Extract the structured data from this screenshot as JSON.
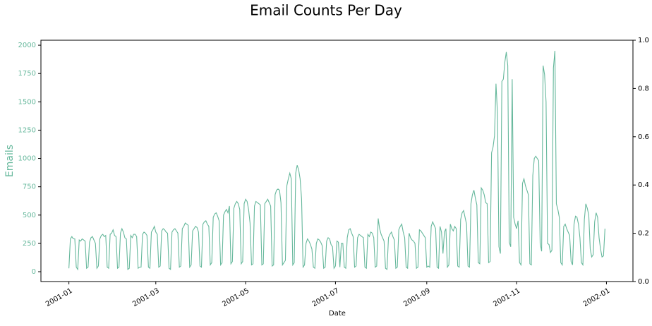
{
  "chart_data": {
    "type": "line",
    "title": "Email Counts Per Day",
    "xlabel": "Date",
    "ylabel": "Emails",
    "color": "#66b89c",
    "x": [
      "2001-01-01",
      "2001-01-02",
      "2001-01-03",
      "2001-01-04",
      "2001-01-05",
      "2001-01-06",
      "2001-01-07",
      "2001-01-08",
      "2001-01-09",
      "2001-01-10",
      "2001-01-11",
      "2001-01-12",
      "2001-01-13",
      "2001-01-14",
      "2001-01-15",
      "2001-01-16",
      "2001-01-17",
      "2001-01-18",
      "2001-01-19",
      "2001-01-20",
      "2001-01-21",
      "2001-01-22",
      "2001-01-23",
      "2001-01-24",
      "2001-01-25",
      "2001-01-26",
      "2001-01-27",
      "2001-01-28",
      "2001-01-29",
      "2001-01-30",
      "2001-01-31",
      "2001-02-01",
      "2001-02-02",
      "2001-02-03",
      "2001-02-04",
      "2001-02-05",
      "2001-02-06",
      "2001-02-07",
      "2001-02-08",
      "2001-02-09",
      "2001-02-10",
      "2001-02-11",
      "2001-02-12",
      "2001-02-13",
      "2001-02-14",
      "2001-02-15",
      "2001-02-16",
      "2001-02-17",
      "2001-02-18",
      "2001-02-19",
      "2001-02-20",
      "2001-02-21",
      "2001-02-22",
      "2001-02-23",
      "2001-02-24",
      "2001-02-25",
      "2001-02-26",
      "2001-02-27",
      "2001-02-28",
      "2001-03-01",
      "2001-03-02",
      "2001-03-03",
      "2001-03-04",
      "2001-03-05",
      "2001-03-06",
      "2001-03-07",
      "2001-03-08",
      "2001-03-09",
      "2001-03-10",
      "2001-03-11",
      "2001-03-12",
      "2001-03-13",
      "2001-03-14",
      "2001-03-15",
      "2001-03-16",
      "2001-03-17",
      "2001-03-18",
      "2001-03-19",
      "2001-03-20",
      "2001-03-21",
      "2001-03-22",
      "2001-03-23",
      "2001-03-24",
      "2001-03-25",
      "2001-03-26",
      "2001-03-27",
      "2001-03-28",
      "2001-03-29",
      "2001-03-30",
      "2001-03-31",
      "2001-04-01",
      "2001-04-02",
      "2001-04-03",
      "2001-04-04",
      "2001-04-05",
      "2001-04-06",
      "2001-04-07",
      "2001-04-08",
      "2001-04-09",
      "2001-04-10",
      "2001-04-11",
      "2001-04-12",
      "2001-04-13",
      "2001-04-14",
      "2001-04-15",
      "2001-04-16",
      "2001-04-17",
      "2001-04-18",
      "2001-04-19",
      "2001-04-20",
      "2001-04-21",
      "2001-04-22",
      "2001-04-23",
      "2001-04-24",
      "2001-04-25",
      "2001-04-26",
      "2001-04-27",
      "2001-04-28",
      "2001-04-29",
      "2001-04-30",
      "2001-05-01",
      "2001-05-02",
      "2001-05-03",
      "2001-05-04",
      "2001-05-05",
      "2001-05-06",
      "2001-05-07",
      "2001-05-08",
      "2001-05-09",
      "2001-05-10",
      "2001-05-11",
      "2001-05-12",
      "2001-05-13",
      "2001-05-14",
      "2001-05-15",
      "2001-05-16",
      "2001-05-17",
      "2001-05-18",
      "2001-05-19",
      "2001-05-20",
      "2001-05-21",
      "2001-05-22",
      "2001-05-23",
      "2001-05-24",
      "2001-05-25",
      "2001-05-26",
      "2001-05-27",
      "2001-05-28",
      "2001-05-29",
      "2001-05-30",
      "2001-05-31",
      "2001-06-01",
      "2001-06-02",
      "2001-06-03",
      "2001-06-04",
      "2001-06-05",
      "2001-06-06",
      "2001-06-07",
      "2001-06-08",
      "2001-06-09",
      "2001-06-10",
      "2001-06-11",
      "2001-06-12",
      "2001-06-13",
      "2001-06-14",
      "2001-06-15",
      "2001-06-16",
      "2001-06-17",
      "2001-06-18",
      "2001-06-19",
      "2001-06-20",
      "2001-06-21",
      "2001-06-22",
      "2001-06-23",
      "2001-06-24",
      "2001-06-25",
      "2001-06-26",
      "2001-06-27",
      "2001-06-28",
      "2001-06-29",
      "2001-06-30",
      "2001-07-01",
      "2001-07-02",
      "2001-07-03",
      "2001-07-04",
      "2001-07-05",
      "2001-07-06",
      "2001-07-07",
      "2001-07-08",
      "2001-07-09",
      "2001-07-10",
      "2001-07-11",
      "2001-07-12",
      "2001-07-13",
      "2001-07-14",
      "2001-07-15",
      "2001-07-16",
      "2001-07-17",
      "2001-07-18",
      "2001-07-19",
      "2001-07-20",
      "2001-07-21",
      "2001-07-22",
      "2001-07-23",
      "2001-07-24",
      "2001-07-25",
      "2001-07-26",
      "2001-07-27",
      "2001-07-28",
      "2001-07-29",
      "2001-07-30",
      "2001-07-31",
      "2001-08-01",
      "2001-08-02",
      "2001-08-03",
      "2001-08-04",
      "2001-08-05",
      "2001-08-06",
      "2001-08-07",
      "2001-08-08",
      "2001-08-09",
      "2001-08-10",
      "2001-08-11",
      "2001-08-12",
      "2001-08-13",
      "2001-08-14",
      "2001-08-15",
      "2001-08-16",
      "2001-08-17",
      "2001-08-18",
      "2001-08-19",
      "2001-08-20",
      "2001-08-21",
      "2001-08-22",
      "2001-08-23",
      "2001-08-24",
      "2001-08-25",
      "2001-08-26",
      "2001-08-27",
      "2001-08-28",
      "2001-08-29",
      "2001-08-30",
      "2001-08-31",
      "2001-09-01",
      "2001-09-02",
      "2001-09-03",
      "2001-09-04",
      "2001-09-05",
      "2001-09-06",
      "2001-09-07",
      "2001-09-08",
      "2001-09-09",
      "2001-09-10",
      "2001-09-11",
      "2001-09-12",
      "2001-09-13",
      "2001-09-14",
      "2001-09-15",
      "2001-09-16",
      "2001-09-17",
      "2001-09-18",
      "2001-09-19",
      "2001-09-20",
      "2001-09-21",
      "2001-09-22",
      "2001-09-23",
      "2001-09-24",
      "2001-09-25",
      "2001-09-26",
      "2001-09-27",
      "2001-09-28",
      "2001-09-29",
      "2001-09-30",
      "2001-10-01",
      "2001-10-02",
      "2001-10-03",
      "2001-10-04",
      "2001-10-05",
      "2001-10-06",
      "2001-10-07",
      "2001-10-08",
      "2001-10-09",
      "2001-10-10",
      "2001-10-11",
      "2001-10-12",
      "2001-10-13",
      "2001-10-14",
      "2001-10-15",
      "2001-10-16",
      "2001-10-17",
      "2001-10-18",
      "2001-10-19",
      "2001-10-20",
      "2001-10-21",
      "2001-10-22",
      "2001-10-23",
      "2001-10-24",
      "2001-10-25",
      "2001-10-26",
      "2001-10-27",
      "2001-10-28",
      "2001-10-29",
      "2001-10-30",
      "2001-10-31",
      "2001-11-01",
      "2001-11-02",
      "2001-11-03",
      "2001-11-04",
      "2001-11-05",
      "2001-11-06",
      "2001-11-07",
      "2001-11-08",
      "2001-11-09",
      "2001-11-10",
      "2001-11-11",
      "2001-11-12",
      "2001-11-13",
      "2001-11-14",
      "2001-11-15",
      "2001-11-16",
      "2001-11-17",
      "2001-11-18",
      "2001-11-19",
      "2001-11-20",
      "2001-11-21",
      "2001-11-22",
      "2001-11-23",
      "2001-11-24",
      "2001-11-25",
      "2001-11-26",
      "2001-11-27",
      "2001-11-28",
      "2001-11-29",
      "2001-11-30",
      "2001-12-01",
      "2001-12-02",
      "2001-12-03",
      "2001-12-04",
      "2001-12-05",
      "2001-12-06",
      "2001-12-07",
      "2001-12-08",
      "2001-12-09",
      "2001-12-10",
      "2001-12-11",
      "2001-12-12",
      "2001-12-13",
      "2001-12-14",
      "2001-12-15",
      "2001-12-16",
      "2001-12-17",
      "2001-12-18",
      "2001-12-19",
      "2001-12-20",
      "2001-12-21",
      "2001-12-22",
      "2001-12-23",
      "2001-12-24",
      "2001-12-25",
      "2001-12-26",
      "2001-12-27",
      "2001-12-28",
      "2001-12-29",
      "2001-12-30",
      "2001-12-31"
    ],
    "values": [
      30,
      290,
      310,
      290,
      290,
      40,
      20,
      280,
      270,
      290,
      280,
      270,
      30,
      40,
      260,
      300,
      310,
      280,
      250,
      30,
      50,
      290,
      320,
      330,
      310,
      320,
      40,
      30,
      330,
      340,
      370,
      320,
      310,
      30,
      40,
      340,
      380,
      350,
      300,
      290,
      20,
      30,
      320,
      300,
      330,
      330,
      310,
      30,
      40,
      40,
      330,
      350,
      340,
      320,
      40,
      30,
      350,
      370,
      400,
      350,
      330,
      40,
      50,
      360,
      380,
      370,
      350,
      340,
      30,
      20,
      350,
      370,
      380,
      360,
      340,
      40,
      50,
      380,
      400,
      430,
      420,
      410,
      40,
      60,
      360,
      380,
      400,
      390,
      350,
      50,
      40,
      420,
      440,
      450,
      420,
      400,
      60,
      80,
      480,
      510,
      520,
      490,
      450,
      60,
      80,
      500,
      530,
      550,
      520,
      580,
      70,
      90,
      560,
      600,
      620,
      600,
      550,
      70,
      90,
      600,
      640,
      620,
      550,
      430,
      60,
      70,
      580,
      620,
      610,
      600,
      590,
      60,
      70,
      600,
      620,
      640,
      610,
      580,
      50,
      60,
      680,
      720,
      730,
      720,
      610,
      60,
      80,
      100,
      760,
      820,
      870,
      820,
      60,
      80,
      870,
      940,
      900,
      820,
      640,
      40,
      60,
      250,
      290,
      270,
      240,
      200,
      40,
      30,
      250,
      290,
      280,
      260,
      230,
      30,
      40,
      270,
      300,
      290,
      240,
      220,
      30,
      50,
      270,
      260,
      40,
      250,
      250,
      40,
      30,
      300,
      370,
      380,
      340,
      310,
      40,
      50,
      300,
      330,
      320,
      310,
      300,
      40,
      30,
      330,
      310,
      350,
      340,
      300,
      40,
      50,
      470,
      380,
      330,
      300,
      270,
      30,
      20,
      300,
      330,
      350,
      310,
      280,
      30,
      40,
      370,
      400,
      420,
      350,
      300,
      40,
      30,
      340,
      300,
      280,
      270,
      250,
      30,
      40,
      370,
      360,
      340,
      320,
      300,
      40,
      50,
      40,
      400,
      440,
      410,
      380,
      40,
      30,
      400,
      350,
      160,
      350,
      380,
      40,
      60,
      420,
      380,
      360,
      400,
      380,
      50,
      40,
      460,
      520,
      540,
      480,
      420,
      50,
      40,
      600,
      680,
      720,
      650,
      590,
      80,
      70,
      740,
      720,
      680,
      610,
      600,
      80,
      90,
      1050,
      1100,
      1200,
      1660,
      1400,
      220,
      160,
      1680,
      1700,
      1850,
      1940,
      1820,
      260,
      220,
      1700,
      480,
      420,
      380,
      450,
      80,
      60,
      780,
      820,
      760,
      720,
      680,
      70,
      60,
      850,
      1000,
      1020,
      1000,
      980,
      250,
      180,
      1820,
      1740,
      1500,
      250,
      240,
      170,
      190,
      1800,
      1950,
      600,
      550,
      480,
      80,
      60,
      400,
      420,
      380,
      350,
      320,
      90,
      60,
      420,
      490,
      480,
      420,
      300,
      80,
      60,
      460,
      600,
      560,
      500,
      200,
      130,
      150,
      440,
      520,
      480,
      300,
      200,
      130,
      140,
      380
    ],
    "xlim": [
      "2000-12-13",
      "2002-01-19"
    ],
    "xticks": [
      {
        "value": "2001-01-01",
        "label": "2001-01"
      },
      {
        "value": "2001-03-01",
        "label": "2001-03"
      },
      {
        "value": "2001-05-01",
        "label": "2001-05"
      },
      {
        "value": "2001-07-01",
        "label": "2001-07"
      },
      {
        "value": "2001-09-01",
        "label": "2001-09"
      },
      {
        "value": "2001-11-01",
        "label": "2001-11"
      },
      {
        "value": "2002-01-01",
        "label": "2002-01"
      }
    ],
    "ylim": [
      -87,
      2044
    ],
    "yticks": [
      0,
      250,
      500,
      750,
      1000,
      1250,
      1500,
      1750,
      2000
    ],
    "y2lim": [
      0,
      1
    ],
    "y2ticks": [
      {
        "value": 0,
        "label": "0.0"
      },
      0.2,
      0.4,
      0.6,
      0.8,
      {
        "value": 1,
        "label": "1.0"
      }
    ],
    "grid": false
  }
}
